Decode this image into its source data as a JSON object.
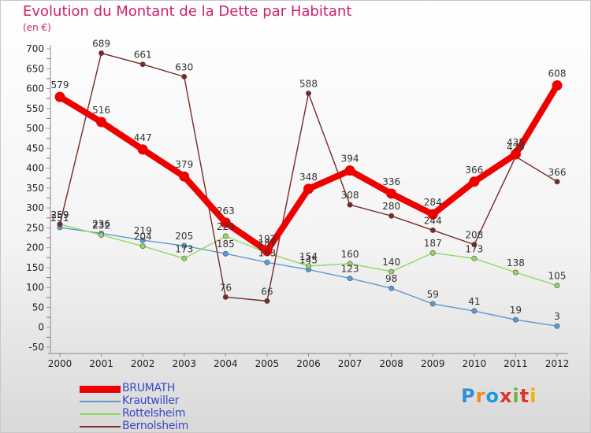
{
  "title": "Evolution du Montant de la Dette par Habitant",
  "subtitle": "(en €)",
  "logo": {
    "letters": [
      "P",
      "r",
      "o",
      "x",
      "i",
      "t",
      "i"
    ],
    "colors": [
      "#2e8fd6",
      "#f08a1c",
      "#1f9ae0",
      "#e0342c",
      "#6db33f",
      "#e0342c",
      "#f0b400"
    ]
  },
  "chart_data": {
    "type": "line",
    "title": "Evolution du Montant de la Dette par Habitant",
    "ylabel": "(en €)",
    "x": [
      "2000",
      "2001",
      "2002",
      "2003",
      "2004",
      "2005",
      "2006",
      "2007",
      "2008",
      "2009",
      "2010",
      "2011",
      "2012"
    ],
    "ylim": [
      -50,
      700
    ],
    "yticks": [
      "-50",
      "0",
      "50",
      "100",
      "150",
      "200",
      "250",
      "300",
      "350",
      "400",
      "450",
      "500",
      "550",
      "600",
      "650",
      "700"
    ],
    "grid": false,
    "legend_position": "bottom-left",
    "series": [
      {
        "name": "BRUMATH",
        "color": "#ee0000",
        "values": [
          579,
          516,
          447,
          379,
          263,
          192,
          348,
          394,
          336,
          284,
          366,
          435,
          608
        ],
        "labels": [
          "579",
          "516",
          "447",
          "379",
          "263",
          "192",
          "348",
          "394",
          "336",
          "284",
          "366",
          "435",
          "608"
        ]
      },
      {
        "name": "Krautwiller",
        "color": "#5a9ad6",
        "values": [
          251,
          236,
          219,
          205,
          185,
          163,
          145,
          123,
          98,
          59,
          41,
          19,
          3
        ],
        "labels": [
          "251",
          "236",
          "219",
          "205",
          "185",
          "163",
          "145",
          "123",
          "98",
          "59",
          "41",
          "19",
          "3"
        ]
      },
      {
        "name": "Rottelsheim",
        "color": "#90d860",
        "values": [
          259,
          232,
          204,
          173,
          229,
          187,
          154,
          160,
          140,
          187,
          173,
          138,
          105
        ],
        "labels": [
          "259",
          "232",
          "204",
          "173",
          "229",
          "187",
          "154",
          "160",
          "140",
          "187",
          "173",
          "138",
          "105"
        ]
      },
      {
        "name": "Bernolsheim",
        "color": "#7a2828",
        "values": [
          259,
          689,
          661,
          630,
          76,
          66,
          588,
          308,
          280,
          244,
          208,
          429,
          366
        ],
        "labels": [
          "259",
          "689",
          "661",
          "630",
          "76",
          "66",
          "588",
          "308",
          "280",
          "244",
          "208",
          "429",
          "366"
        ]
      }
    ]
  }
}
